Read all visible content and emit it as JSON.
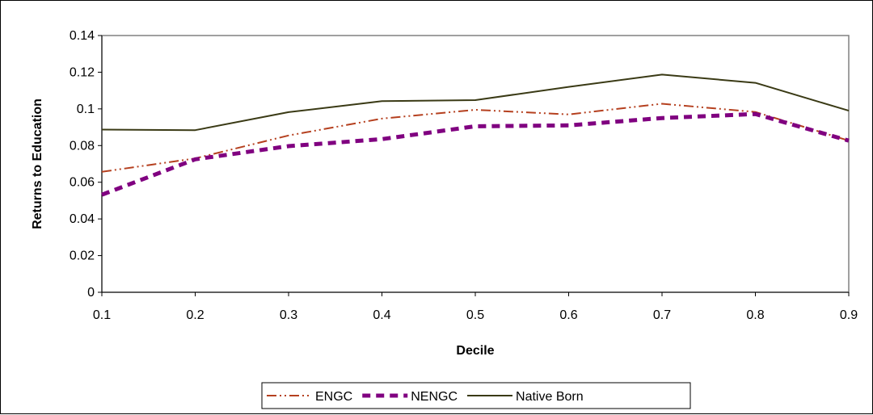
{
  "chart_data": {
    "type": "line",
    "title": "",
    "xlabel": "Decile",
    "ylabel": "Returns to Education",
    "x": [
      0.1,
      0.2,
      0.3,
      0.4,
      0.5,
      0.6,
      0.7,
      0.8,
      0.9
    ],
    "x_tick_labels": [
      "0.1",
      "0.2",
      "0.3",
      "0.4",
      "0.5",
      "0.6",
      "0.7",
      "0.8",
      "0.9"
    ],
    "y_tick_labels": [
      "0",
      "0.02",
      "0.04",
      "0.06",
      "0.08",
      "0.1",
      "0.12",
      "0.14"
    ],
    "xlim": [
      0.1,
      0.9
    ],
    "ylim": [
      0,
      0.14
    ],
    "grid": false,
    "legend_position": "bottom",
    "series": [
      {
        "name": "ENGC",
        "color": "#b5401f",
        "line_style": "dash-dot-dot",
        "values": [
          0.0657,
          0.073,
          0.0855,
          0.0947,
          0.0995,
          0.097,
          0.1028,
          0.0983,
          0.0827
        ]
      },
      {
        "name": "NENGC",
        "color": "#800080",
        "line_style": "thick-dash",
        "values": [
          0.0532,
          0.0725,
          0.0797,
          0.0835,
          0.0905,
          0.091,
          0.095,
          0.0972,
          0.0827
        ]
      },
      {
        "name": "Native Born",
        "color": "#3a3a15",
        "line_style": "solid",
        "values": [
          0.0887,
          0.0884,
          0.0982,
          0.1042,
          0.1048,
          0.112,
          0.1187,
          0.1142,
          0.099
        ]
      }
    ]
  }
}
